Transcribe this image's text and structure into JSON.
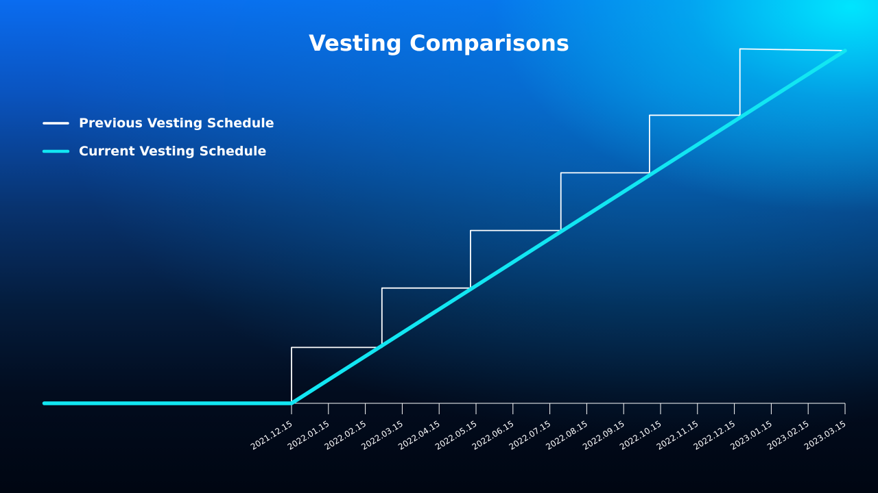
{
  "chart_data": {
    "type": "line",
    "title": "Vesting Comparisons",
    "xlabel": "",
    "ylabel": "",
    "x_ticks": [
      "2021.12.15",
      "2022.01.15",
      "2022.02.15",
      "2022.03.15",
      "2022.04.15",
      "2022.05.15",
      "2022.06.15",
      "2022.07.15",
      "2022.08.15",
      "2022.09.15",
      "2022.10.15",
      "2022.11.15",
      "2022.12.15",
      "2023.01.15",
      "2023.02.15",
      "2023.03.15"
    ],
    "ylim": [
      0,
      100
    ],
    "grid": false,
    "legend_position": "top-left",
    "series": [
      {
        "name": "Previous Vesting Schedule",
        "color": "#ffffff",
        "shape": "step",
        "points": [
          {
            "x": 0,
            "y": 0
          },
          {
            "x": 0,
            "y": 16
          },
          {
            "x": 2.45,
            "y": 16
          },
          {
            "x": 2.45,
            "y": 33
          },
          {
            "x": 4.85,
            "y": 33
          },
          {
            "x": 4.85,
            "y": 49.5
          },
          {
            "x": 7.3,
            "y": 49.5
          },
          {
            "x": 7.3,
            "y": 66
          },
          {
            "x": 9.7,
            "y": 66
          },
          {
            "x": 9.7,
            "y": 82.5
          },
          {
            "x": 12.15,
            "y": 82.5
          },
          {
            "x": 12.15,
            "y": 101.5
          },
          {
            "x": 15,
            "y": 101
          }
        ]
      },
      {
        "name": "Current Vesting Schedule",
        "color": "#12e6f2",
        "shape": "linear",
        "points": [
          {
            "x": -6.7,
            "y": 0
          },
          {
            "x": 0,
            "y": 0
          },
          {
            "x": 15,
            "y": 101
          }
        ]
      }
    ]
  }
}
